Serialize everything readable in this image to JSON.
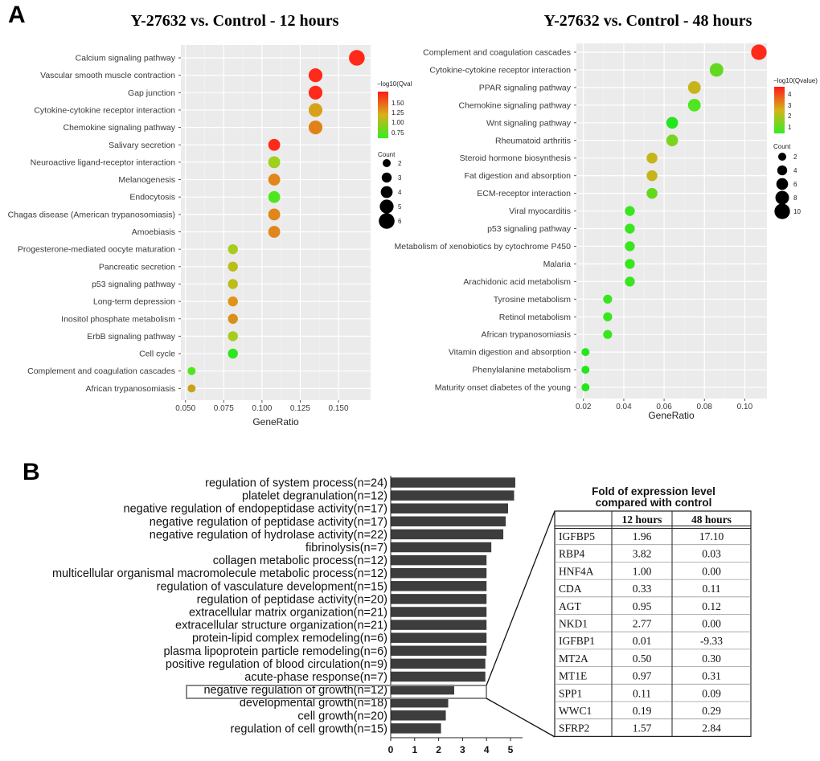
{
  "panels": {
    "a": "A",
    "b": "B"
  },
  "chart_data": [
    {
      "type": "scatter",
      "title": "Y-27632 vs. Control  - 12 hours",
      "xlabel": "GeneRatio",
      "xlim": [
        0.047,
        0.171
      ],
      "xticks": [
        0.05,
        0.075,
        0.1,
        0.125,
        0.15
      ],
      "xtick_labels": [
        "0.050",
        "0.075",
        "0.100",
        "0.125",
        "0.150"
      ],
      "color_scale": {
        "title": "−log10(Qval",
        "ticks": [
          "1.50",
          "1.25",
          "1.00",
          "0.75"
        ],
        "low": "#33ee22",
        "high": "#ff1a1a"
      },
      "size_legend": {
        "title": "Count",
        "values": [
          "2",
          "3",
          "4",
          "5",
          "6"
        ]
      },
      "points": [
        {
          "term": "Calcium signaling pathway",
          "gene_ratio": 0.162,
          "count": 6,
          "color": "#ff2a1a"
        },
        {
          "term": "Vascular smooth muscle contraction",
          "gene_ratio": 0.135,
          "count": 5,
          "color": "#ff2a1a"
        },
        {
          "term": "Gap junction",
          "gene_ratio": 0.135,
          "count": 5,
          "color": "#ff2a1a"
        },
        {
          "term": "Cytokine-cytokine receptor interaction",
          "gene_ratio": 0.135,
          "count": 5,
          "color": "#d7a21a"
        },
        {
          "term": "Chemokine signaling pathway",
          "gene_ratio": 0.135,
          "count": 5,
          "color": "#e0821a"
        },
        {
          "term": "Salivary secretion",
          "gene_ratio": 0.108,
          "count": 4,
          "color": "#ff2a1a"
        },
        {
          "term": "Neuroactive ligand-receptor interaction",
          "gene_ratio": 0.108,
          "count": 4,
          "color": "#9dd11a"
        },
        {
          "term": "Melanogenesis",
          "gene_ratio": 0.108,
          "count": 4,
          "color": "#e0861a"
        },
        {
          "term": "Endocytosis",
          "gene_ratio": 0.108,
          "count": 4,
          "color": "#4ee61e"
        },
        {
          "term": "Chagas disease (American trypanosomiasis)",
          "gene_ratio": 0.108,
          "count": 4,
          "color": "#e0861a"
        },
        {
          "term": "Amoebiasis",
          "gene_ratio": 0.108,
          "count": 4,
          "color": "#e0861a"
        },
        {
          "term": "Progesterone-mediated oocyte maturation",
          "gene_ratio": 0.081,
          "count": 3,
          "color": "#a8cc1a"
        },
        {
          "term": "Pancreatic secretion",
          "gene_ratio": 0.081,
          "count": 3,
          "color": "#bcbc1a"
        },
        {
          "term": "p53 signaling pathway",
          "gene_ratio": 0.081,
          "count": 3,
          "color": "#bcbc1a"
        },
        {
          "term": "Long-term depression",
          "gene_ratio": 0.081,
          "count": 3,
          "color": "#e0921a"
        },
        {
          "term": "Inositol phosphate metabolism",
          "gene_ratio": 0.081,
          "count": 3,
          "color": "#d98f1a"
        },
        {
          "term": "ErbB signaling pathway",
          "gene_ratio": 0.081,
          "count": 3,
          "color": "#a8cc1a"
        },
        {
          "term": "Cell cycle",
          "gene_ratio": 0.081,
          "count": 3,
          "color": "#2ee61e"
        },
        {
          "term": "Complement and coagulation cascades",
          "gene_ratio": 0.054,
          "count": 2,
          "color": "#4ee61e"
        },
        {
          "term": "African trypanosomiasis",
          "gene_ratio": 0.054,
          "count": 2,
          "color": "#c8a21a"
        }
      ]
    },
    {
      "type": "scatter",
      "title": "Y-27632 vs. Control - 48 hours",
      "xlabel": "GeneRatio",
      "xlim": [
        0.0165,
        0.111
      ],
      "xticks": [
        0.02,
        0.04,
        0.06,
        0.08,
        0.1
      ],
      "xtick_labels": [
        "0.02",
        "0.04",
        "0.06",
        "0.08",
        "0.10"
      ],
      "color_scale": {
        "title": "−log10(Qvalue)",
        "ticks": [
          "4",
          "3",
          "2",
          "1"
        ],
        "low": "#33ee22",
        "high": "#ff1a1a"
      },
      "size_legend": {
        "title": "Count",
        "values": [
          "2",
          "4",
          "6",
          "8",
          "10"
        ]
      },
      "points": [
        {
          "term": "Complement and coagulation cascades",
          "gene_ratio": 0.107,
          "count": 10,
          "color": "#ff2a1a"
        },
        {
          "term": "Cytokine-cytokine receptor interaction",
          "gene_ratio": 0.086,
          "count": 8,
          "color": "#62d81e"
        },
        {
          "term": "PPAR signaling pathway",
          "gene_ratio": 0.075,
          "count": 7,
          "color": "#c6b41a"
        },
        {
          "term": "Chemokine signaling pathway",
          "gene_ratio": 0.075,
          "count": 7,
          "color": "#4ee61e"
        },
        {
          "term": "Wnt signaling pathway",
          "gene_ratio": 0.064,
          "count": 6,
          "color": "#24e61e"
        },
        {
          "term": "Rheumatoid arthritis",
          "gene_ratio": 0.064,
          "count": 6,
          "color": "#7ad41e"
        },
        {
          "term": "Steroid hormone biosynthesis",
          "gene_ratio": 0.054,
          "count": 5,
          "color": "#c6b41a"
        },
        {
          "term": "Fat digestion and absorption",
          "gene_ratio": 0.054,
          "count": 5,
          "color": "#c6b41a"
        },
        {
          "term": "ECM-receptor interaction",
          "gene_ratio": 0.054,
          "count": 5,
          "color": "#62d81e"
        },
        {
          "term": "Viral myocarditis",
          "gene_ratio": 0.043,
          "count": 4,
          "color": "#38e61e"
        },
        {
          "term": "p53 signaling pathway",
          "gene_ratio": 0.043,
          "count": 4,
          "color": "#38e61e"
        },
        {
          "term": "Metabolism of xenobiotics by cytochrome P450",
          "gene_ratio": 0.043,
          "count": 4,
          "color": "#38e61e"
        },
        {
          "term": "Malaria",
          "gene_ratio": 0.043,
          "count": 4,
          "color": "#38e61e"
        },
        {
          "term": "Arachidonic acid metabolism",
          "gene_ratio": 0.043,
          "count": 4,
          "color": "#38e61e"
        },
        {
          "term": "Tyrosine metabolism",
          "gene_ratio": 0.032,
          "count": 3,
          "color": "#38e61e"
        },
        {
          "term": "Retinol metabolism",
          "gene_ratio": 0.032,
          "count": 3,
          "color": "#38e61e"
        },
        {
          "term": "African trypanosomiasis",
          "gene_ratio": 0.032,
          "count": 3,
          "color": "#38e61e"
        },
        {
          "term": "Vitamin digestion and absorption",
          "gene_ratio": 0.021,
          "count": 2,
          "color": "#24e61e"
        },
        {
          "term": "Phenylalanine metabolism",
          "gene_ratio": 0.021,
          "count": 2,
          "color": "#24e61e"
        },
        {
          "term": "Maturity onset diabetes of the young",
          "gene_ratio": 0.021,
          "count": 2,
          "color": "#24e61e"
        }
      ]
    },
    {
      "type": "bar",
      "orientation": "horizontal",
      "xlim": [
        0,
        5.5
      ],
      "xticks": [
        "0",
        "1",
        "2",
        "3",
        "4",
        "5"
      ],
      "bar_color": "#3d3d3d",
      "highlight_index": 16,
      "categories": [
        "regulation of system process(n=24)",
        "platelet degranulation(n=12)",
        "negative regulation of endopeptidase activity(n=17)",
        "negative regulation of peptidase activity(n=17)",
        "negative regulation of hydrolase activity(n=22)",
        "fibrinolysis(n=7)",
        "collagen metabolic process(n=12)",
        "multicellular organismal macromolecule metabolic process(n=12)",
        "regulation of vasculature development(n=15)",
        "regulation of peptidase activity(n=20)",
        "extracellular matrix organization(n=21)",
        "extracellular structure organization(n=21)",
        "protein-lipid complex remodeling(n=6)",
        "plasma lipoprotein particle remodeling(n=6)",
        "positive regulation of blood circulation(n=9)",
        "acute-phase response(n=7)",
        "negative regulation of growth(n=12)",
        "developmental growth(n=18)",
        "cell growth(n=20)",
        "regulation of cell growth(n=15)"
      ],
      "values": [
        5.2,
        5.15,
        4.9,
        4.8,
        4.7,
        4.2,
        4.0,
        4.0,
        4.0,
        4.0,
        4.0,
        4.0,
        4.0,
        4.0,
        3.95,
        3.95,
        2.65,
        2.4,
        2.3,
        2.1
      ]
    },
    {
      "type": "table",
      "title_lines": [
        "Fold of expression level",
        "compared with control"
      ],
      "columns": [
        "",
        "12 hours",
        "48 hours"
      ],
      "rows": [
        [
          "IGFBP5",
          "1.96",
          "17.10"
        ],
        [
          "RBP4",
          "3.82",
          "0.03"
        ],
        [
          "HNF4A",
          "1.00",
          "0.00"
        ],
        [
          "CDA",
          "0.33",
          "0.11"
        ],
        [
          "AGT",
          "0.95",
          "0.12"
        ],
        [
          "NKD1",
          "2.77",
          "0.00"
        ],
        [
          "IGFBP1",
          "0.01",
          "-9.33"
        ],
        [
          "MT2A",
          "0.50",
          "0.30"
        ],
        [
          "MT1E",
          "0.97",
          "0.31"
        ],
        [
          "SPP1",
          "0.11",
          "0.09"
        ],
        [
          "WWC1",
          "0.19",
          "0.29"
        ],
        [
          "SFRP2",
          "1.57",
          "2.84"
        ]
      ]
    }
  ]
}
